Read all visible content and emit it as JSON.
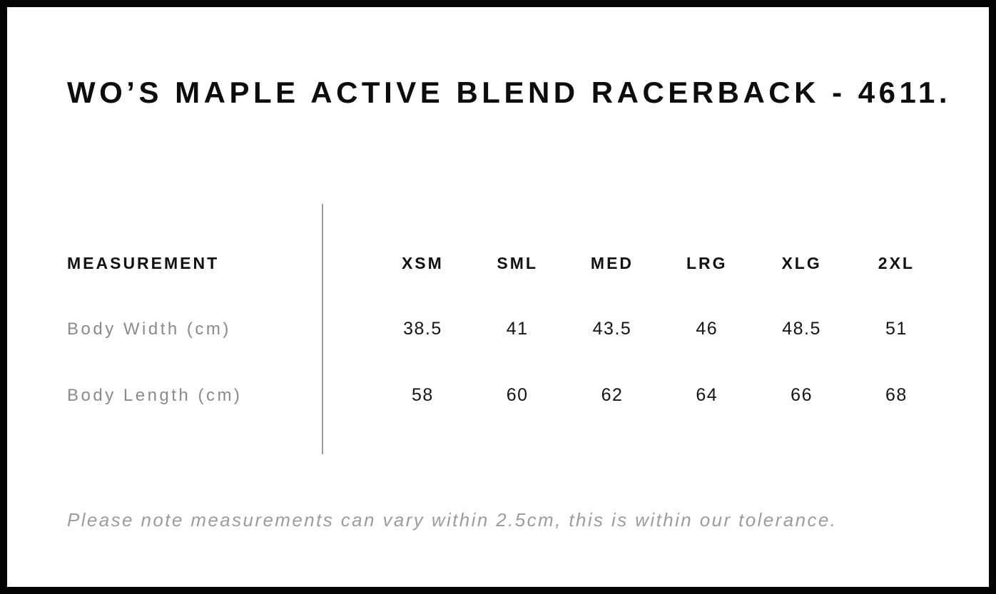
{
  "title": "WO’S MAPLE ACTIVE BLEND RACERBACK - 4611.",
  "note": "Please note measurements can vary within 2.5cm, this is within our tolerance.",
  "chart_data": {
    "type": "table",
    "title": "WO’S MAPLE ACTIVE BLEND RACERBACK - 4611.",
    "columns": [
      "MEASUREMENT",
      "XSM",
      "SML",
      "MED",
      "LRG",
      "XLG",
      "2XL"
    ],
    "rows": [
      [
        "Body Width (cm)",
        "38.5",
        "41",
        "43.5",
        "46",
        "48.5",
        "51"
      ],
      [
        "Body Length (cm)",
        "58",
        "60",
        "62",
        "64",
        "66",
        "68"
      ]
    ],
    "note": "Please note measurements can vary within 2.5cm, this is within our tolerance."
  },
  "colors": {
    "frame_border": "#050505",
    "title_text": "#0d0d0d",
    "header_text": "#111111",
    "row_label_text": "#8a8a8a",
    "value_text": "#141414",
    "note_text": "#9c9c9c",
    "divider": "#9b9b9b",
    "background": "#ffffff"
  }
}
